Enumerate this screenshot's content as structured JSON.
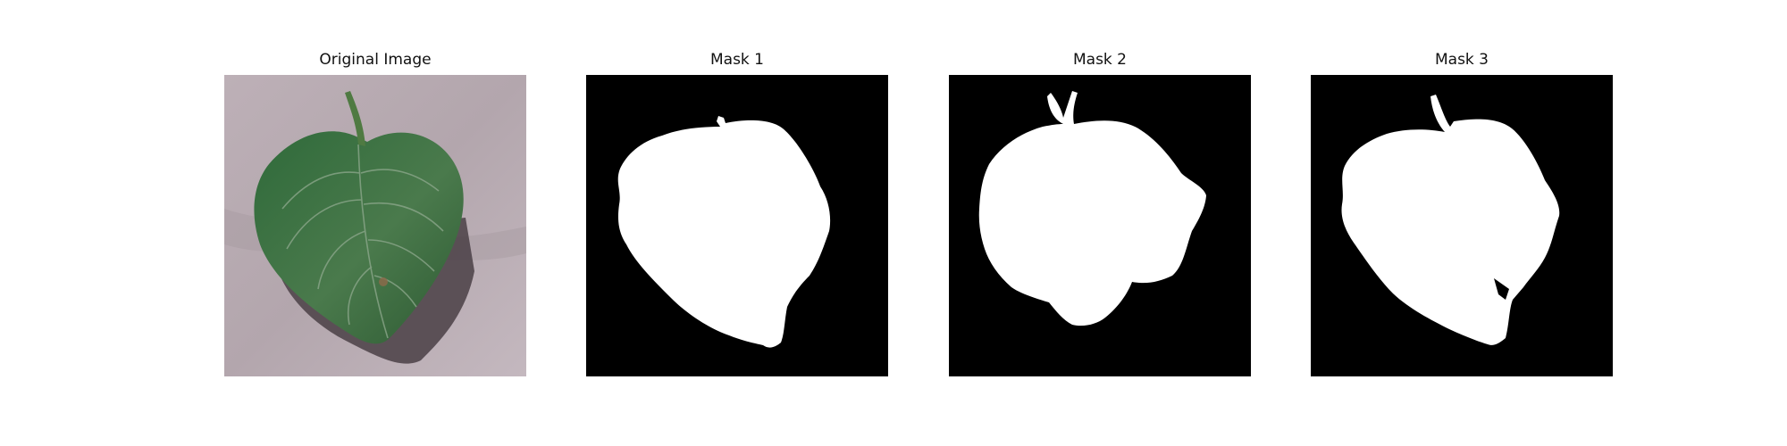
{
  "figure": {
    "panels": [
      {
        "title": "Original Image"
      },
      {
        "title": "Mask 1"
      },
      {
        "title": "Mask 2"
      },
      {
        "title": "Mask 3"
      }
    ]
  },
  "colors": {
    "background": "#ffffff",
    "mask_background": "#000000",
    "mask_foreground": "#ffffff",
    "leaf_green": "#3f6e3f",
    "leaf_dark": "#2c5230",
    "surface_gray": "#b7aab0",
    "shadow": "#4a3f45"
  }
}
